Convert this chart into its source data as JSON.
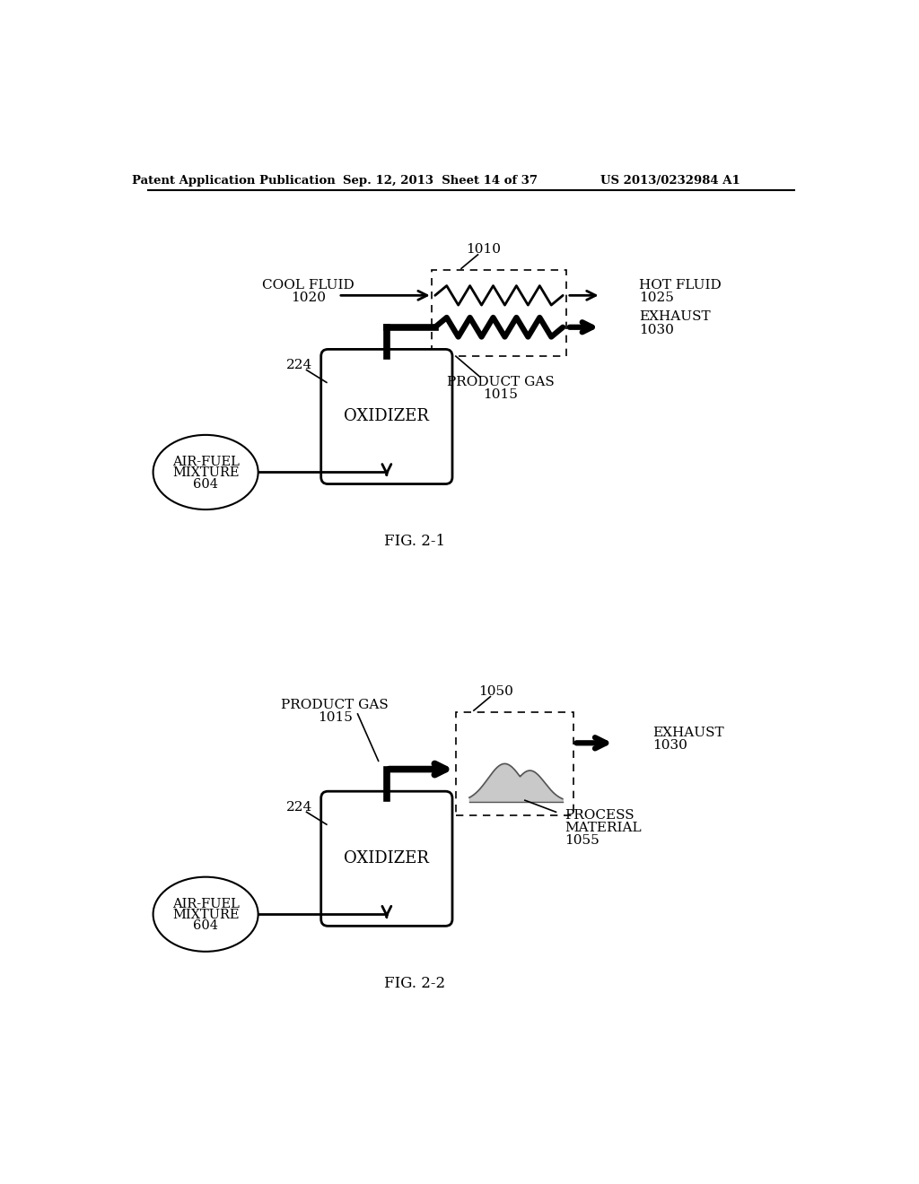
{
  "header_left": "Patent Application Publication",
  "header_mid": "Sep. 12, 2013  Sheet 14 of 37",
  "header_right": "US 2013/0232984 A1",
  "fig1_label": "FIG. 2-1",
  "fig2_label": "FIG. 2-2",
  "bg_color": "#ffffff",
  "line_color": "#000000",
  "text_color": "#000000"
}
